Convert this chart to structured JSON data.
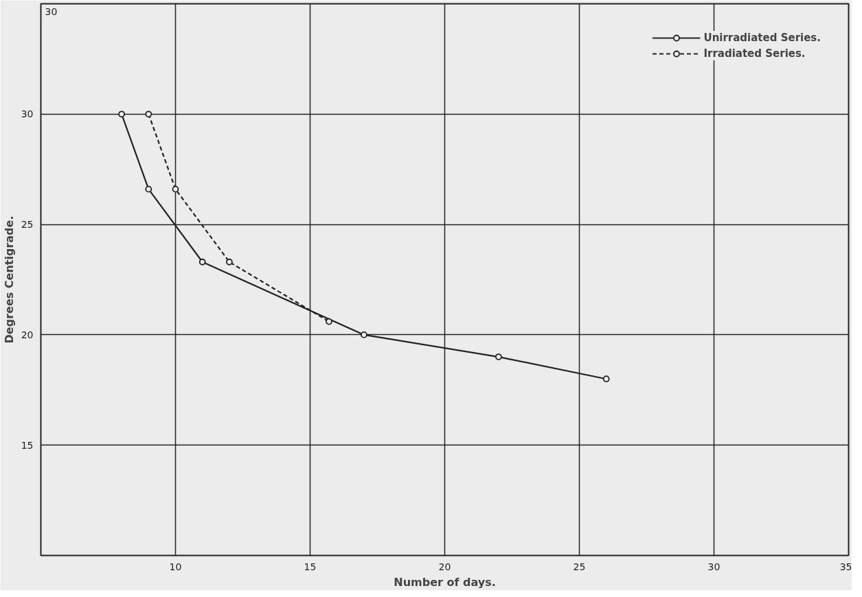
{
  "chart_data": {
    "type": "line",
    "xlabel": "Number of days.",
    "ylabel": "Degrees Centigrade.",
    "xlim": [
      5,
      35
    ],
    "ylim": [
      10,
      35
    ],
    "xticks": [
      10,
      15,
      20,
      25,
      30,
      35
    ],
    "yticks": [
      15,
      20,
      25,
      30,
      {
        "value": 35,
        "label": null
      }
    ],
    "annotations": [
      "30"
    ],
    "grid": true,
    "legend": "top right",
    "marker": "circle",
    "series": [
      {
        "name": "Unirradiated Series.",
        "color": "#222222",
        "line_style": "solid",
        "x": [
          8,
          9,
          11,
          17,
          22,
          26
        ],
        "values": [
          30,
          26.6,
          23.3,
          20,
          19,
          18
        ]
      },
      {
        "name": "Irradiated Series.",
        "color": "#222222",
        "line_style": "dashed",
        "x": [
          9,
          10,
          12,
          15.7
        ],
        "values": [
          30,
          26.6,
          23.3,
          20.6
        ]
      }
    ]
  }
}
